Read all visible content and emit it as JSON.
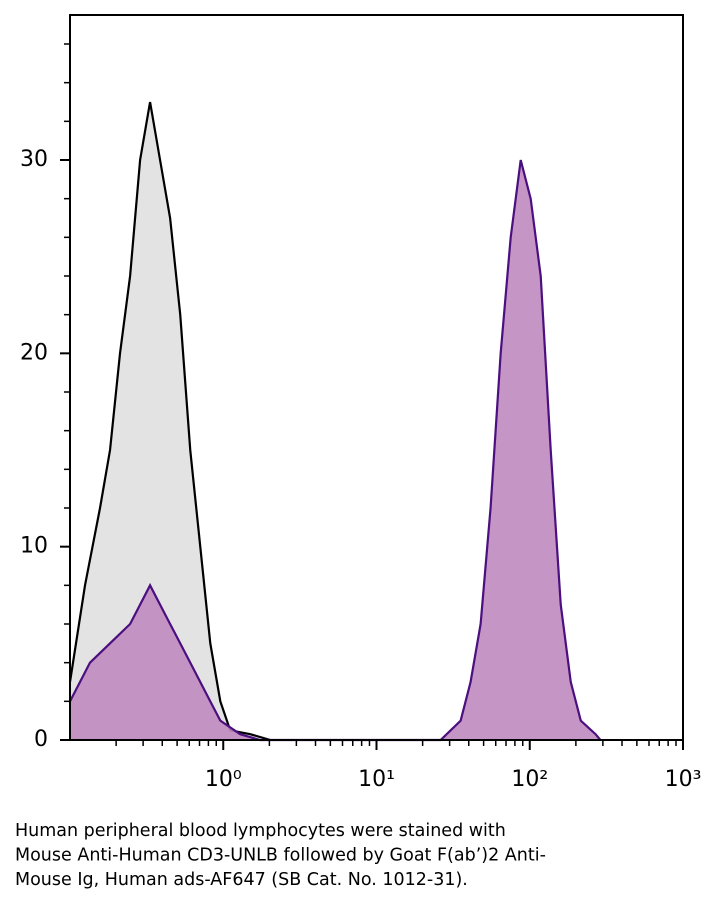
{
  "chart_data": {
    "type": "area",
    "xscale": "log",
    "xlim": [
      0.1,
      1000
    ],
    "xticks": [
      {
        "value": 1,
        "label": "10⁰"
      },
      {
        "value": 10,
        "label": "10¹"
      },
      {
        "value": 100,
        "label": "10²"
      },
      {
        "value": 1000,
        "label": "10³"
      }
    ],
    "xminorticks": [
      0.2,
      0.3,
      0.4,
      0.5,
      0.6,
      0.7,
      0.8,
      0.9,
      2,
      3,
      4,
      5,
      6,
      7,
      8,
      9,
      20,
      30,
      40,
      50,
      60,
      70,
      80,
      90,
      200,
      300,
      400,
      500,
      600,
      700,
      800,
      900
    ],
    "ylim": [
      0,
      37.5
    ],
    "yticks": [
      0,
      10,
      20,
      30
    ],
    "yminorticks": [
      2,
      4,
      6,
      8,
      12,
      14,
      16,
      18,
      22,
      24,
      26,
      28,
      32,
      34,
      36
    ],
    "series": [
      {
        "color": "#000000",
        "fill": "#e0e0e0",
        "x": [
          0.1,
          0.1253,
          0.157,
          0.1825,
          0.212,
          0.2467,
          0.2867,
          0.333,
          0.387,
          0.45,
          0.524,
          0.609,
          0.708,
          0.823,
          0.957,
          1.11,
          1.5,
          2.03
        ],
        "values": [
          3,
          8,
          12,
          15,
          20,
          24,
          30,
          33,
          30,
          27,
          22,
          15,
          10,
          5,
          2,
          0.5,
          0.3,
          0
        ]
      },
      {
        "color": "#4b0f7f",
        "fill": "#bf8abf",
        "x": [
          0.1,
          0.135,
          0.1825,
          0.2467,
          0.2867,
          0.333,
          0.387,
          0.45,
          0.524,
          0.609,
          0.708,
          0.823,
          0.957,
          1.29,
          1.74,
          5,
          26.2,
          35.4,
          41.1,
          47.8,
          55.5,
          64.6,
          75.1,
          87.3,
          101.4,
          117.9,
          137,
          159.3,
          185.2,
          215.3,
          269,
          289
        ],
        "values": [
          2,
          4,
          5,
          6,
          7,
          8,
          7,
          6,
          5,
          4,
          3,
          2,
          1,
          0.3,
          0,
          0,
          0,
          1,
          3,
          6,
          12,
          20,
          26,
          30,
          28,
          24,
          15,
          7,
          3,
          1,
          0.3,
          0
        ]
      }
    ],
    "caption": [
      "Human peripheral blood lymphocytes were stained with",
      "Mouse Anti-Human CD3-UNLB followed by Goat F(ab’)2 Anti-",
      "Mouse Ig, Human ads-AF647 (SB Cat. No. 1012-31)."
    ]
  }
}
